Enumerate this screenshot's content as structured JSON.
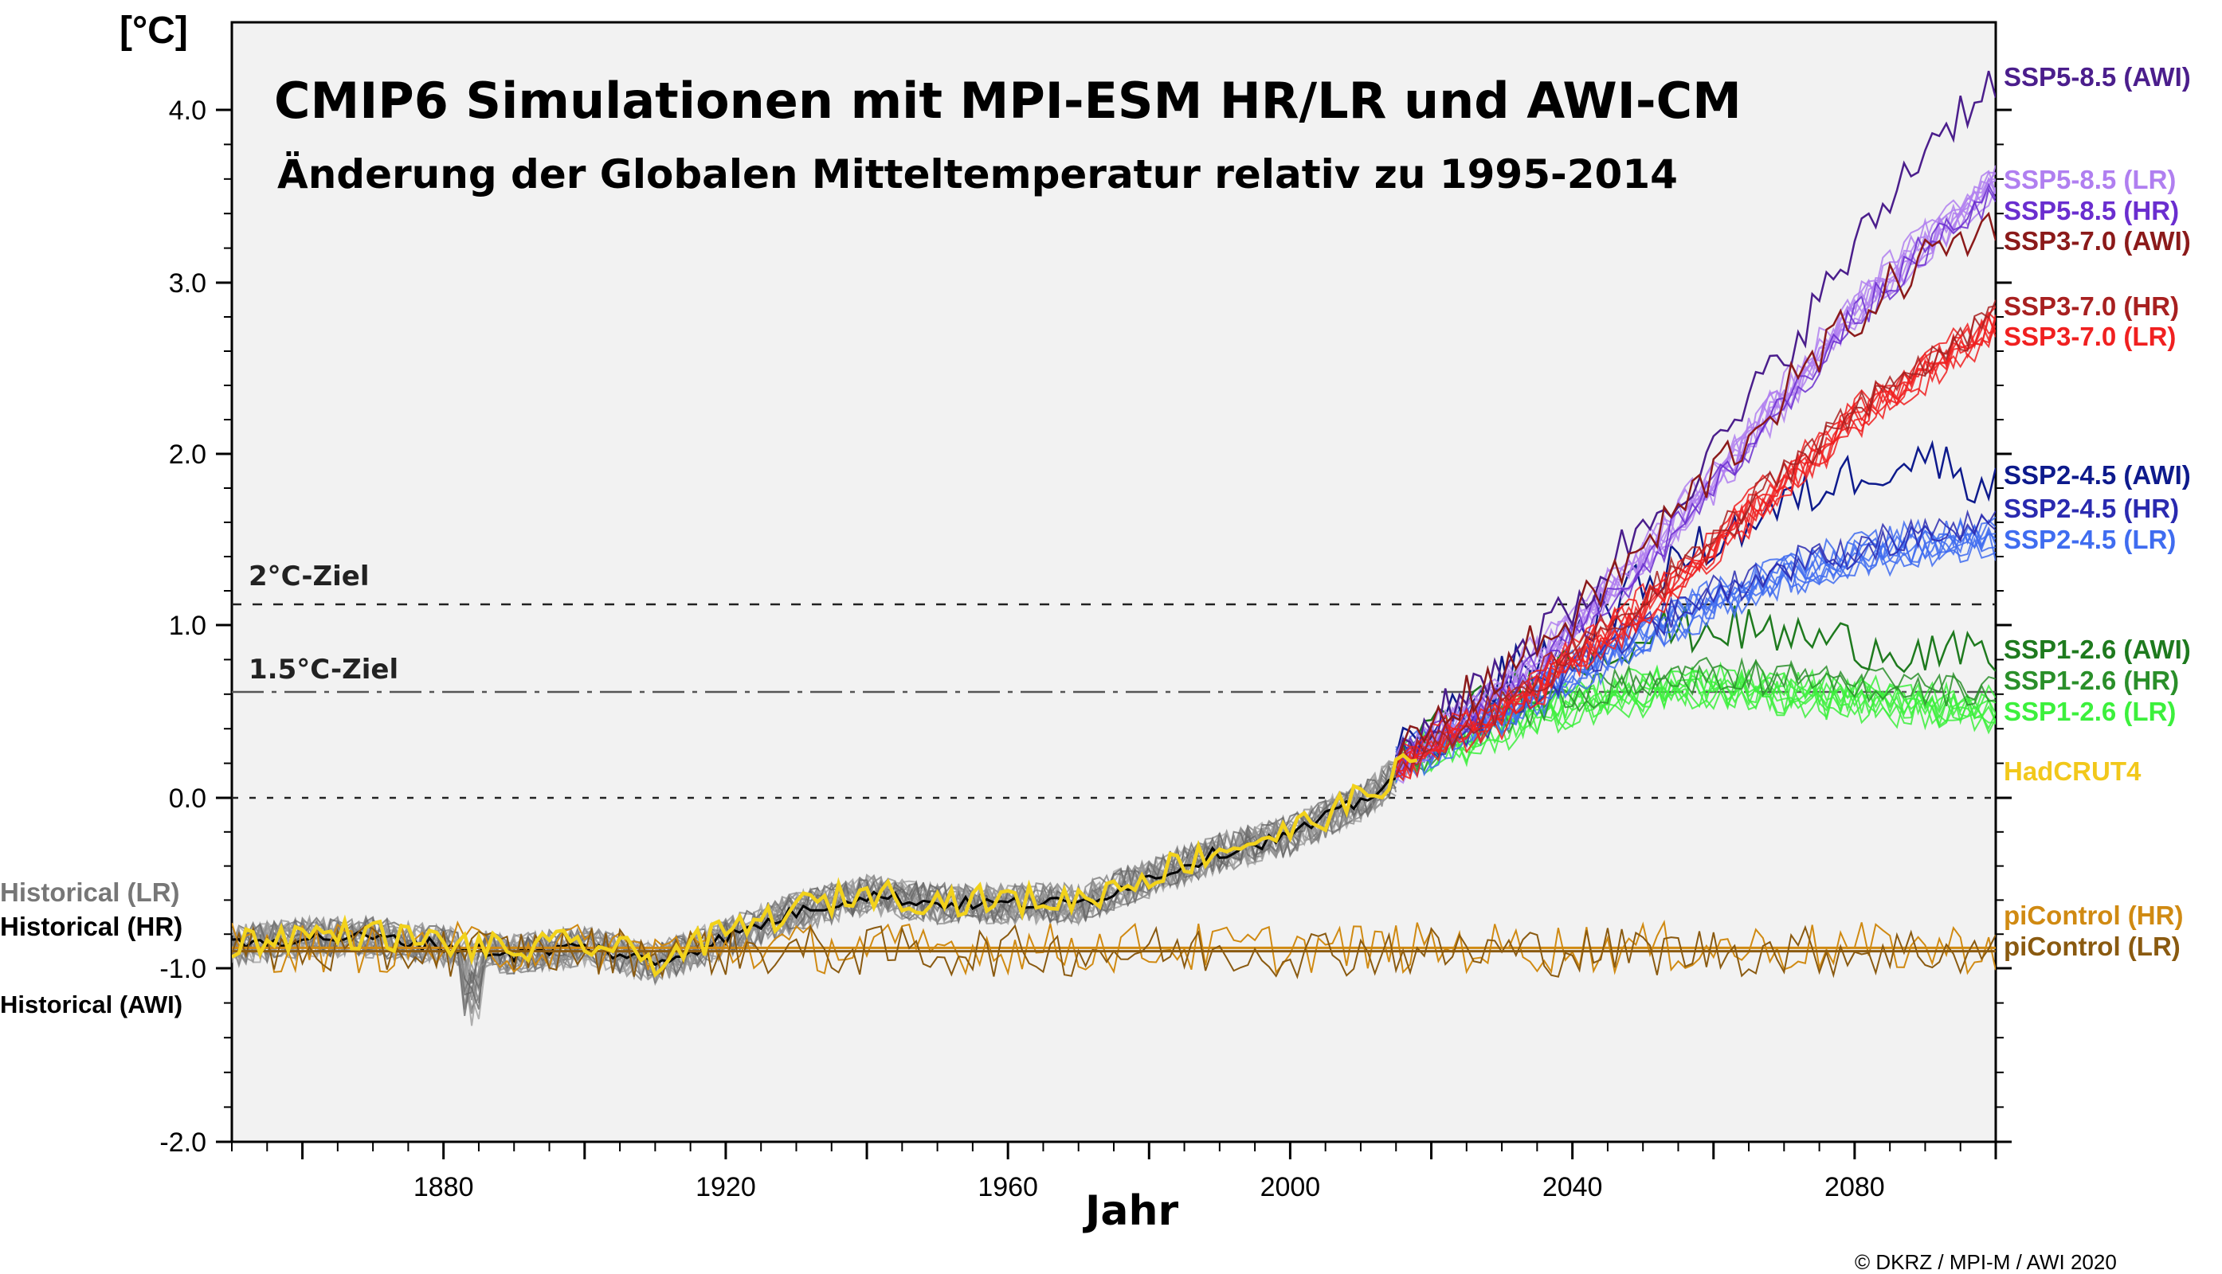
{
  "chart_data": {
    "type": "line",
    "title": "CMIP6 Simulationen mit MPI-ESM HR/LR und AWI-CM",
    "subtitle": "Änderung der Globalen Mitteltemperatur relativ zu 1995-2014",
    "xlabel": "Jahr",
    "ylabel": "[°C]",
    "xlim": [
      1850,
      2100
    ],
    "ylim": [
      -2.0,
      4.0
    ],
    "x_ticks": [
      "1880",
      "1920",
      "1960",
      "2000",
      "2040",
      "2080"
    ],
    "y_ticks": [
      "4.0",
      "3.0",
      "2.0",
      "1.0",
      "0.0",
      "-1.0",
      "-2.0"
    ],
    "grid": false,
    "legend": "right-side labels",
    "copyright": "© DKRZ / MPI-M / AWI 2020",
    "reference_lines": [
      {
        "label": "2°C-Ziel",
        "y": 1.12,
        "style": "dashed"
      },
      {
        "label": "1.5°C-Ziel",
        "y": 0.62,
        "style": "dash-dot"
      },
      {
        "label": "",
        "y": 0.0,
        "style": "dotted"
      }
    ],
    "left_labels": [
      {
        "label": "Historical (LR)",
        "color": "#777777"
      },
      {
        "label": "Historical (HR)",
        "color": "#000000"
      },
      {
        "label": "Historical (AWI)",
        "color": "#000000"
      }
    ],
    "series": [
      {
        "name": "SSP5-8.5 (AWI)",
        "color": "#4b1e8c",
        "x": [
          2015,
          2030,
          2040,
          2050,
          2060,
          2070,
          2080,
          2090,
          2100
        ],
        "y": [
          0.25,
          0.8,
          1.1,
          1.6,
          2.0,
          2.6,
          3.2,
          3.8,
          4.2
        ]
      },
      {
        "name": "SSP5-8.5 (LR)",
        "color": "#b07ff0",
        "x": [
          2015,
          2030,
          2040,
          2050,
          2060,
          2070,
          2080,
          2090,
          2100
        ],
        "y": [
          0.2,
          0.65,
          1.0,
          1.4,
          1.85,
          2.35,
          2.85,
          3.25,
          3.6
        ]
      },
      {
        "name": "SSP5-8.5 (HR)",
        "color": "#6a2ecf",
        "x": [
          2015,
          2030,
          2040,
          2050,
          2060,
          2070,
          2080,
          2090,
          2100
        ],
        "y": [
          0.2,
          0.6,
          0.95,
          1.35,
          1.8,
          2.3,
          2.8,
          3.2,
          3.5
        ]
      },
      {
        "name": "SSP3-7.0 (AWI)",
        "color": "#8b1a1a",
        "x": [
          2015,
          2030,
          2040,
          2050,
          2060,
          2070,
          2080,
          2090,
          2100
        ],
        "y": [
          0.25,
          0.75,
          1.05,
          1.45,
          1.9,
          2.35,
          2.8,
          3.15,
          3.35
        ]
      },
      {
        "name": "SSP3-7.0 (HR)",
        "color": "#a82020",
        "x": [
          2015,
          2030,
          2040,
          2050,
          2060,
          2070,
          2080,
          2090,
          2100
        ],
        "y": [
          0.2,
          0.55,
          0.85,
          1.15,
          1.5,
          1.9,
          2.25,
          2.55,
          2.8
        ]
      },
      {
        "name": "SSP3-7.0 (LR)",
        "color": "#f02020",
        "x": [
          2015,
          2030,
          2040,
          2050,
          2060,
          2070,
          2080,
          2090,
          2100
        ],
        "y": [
          0.2,
          0.5,
          0.8,
          1.1,
          1.45,
          1.85,
          2.2,
          2.5,
          2.75
        ]
      },
      {
        "name": "SSP2-4.5 (AWI)",
        "color": "#0d1a8c",
        "x": [
          2015,
          2030,
          2040,
          2050,
          2060,
          2070,
          2080,
          2090,
          2100
        ],
        "y": [
          0.25,
          0.7,
          0.95,
          1.25,
          1.5,
          1.7,
          1.9,
          2.0,
          1.8
        ]
      },
      {
        "name": "SSP2-4.5 (HR)",
        "color": "#2a2ab0",
        "x": [
          2015,
          2030,
          2040,
          2050,
          2060,
          2070,
          2080,
          2090,
          2100
        ],
        "y": [
          0.2,
          0.5,
          0.75,
          1.0,
          1.2,
          1.35,
          1.45,
          1.55,
          1.58
        ]
      },
      {
        "name": "SSP2-4.5 (LR)",
        "color": "#3f6cf0",
        "x": [
          2015,
          2030,
          2040,
          2050,
          2060,
          2070,
          2080,
          2090,
          2100
        ],
        "y": [
          0.2,
          0.5,
          0.72,
          0.95,
          1.15,
          1.3,
          1.4,
          1.48,
          1.52
        ]
      },
      {
        "name": "SSP1-2.6 (AWI)",
        "color": "#1e7a1e",
        "x": [
          2015,
          2030,
          2040,
          2050,
          2060,
          2070,
          2080,
          2090,
          2100
        ],
        "y": [
          0.25,
          0.6,
          0.8,
          0.95,
          1.0,
          0.95,
          0.9,
          0.85,
          0.8
        ]
      },
      {
        "name": "SSP1-2.6 (HR)",
        "color": "#2a8f2a",
        "x": [
          2015,
          2030,
          2040,
          2050,
          2060,
          2070,
          2080,
          2090,
          2100
        ],
        "y": [
          0.2,
          0.45,
          0.6,
          0.7,
          0.72,
          0.7,
          0.67,
          0.65,
          0.63
        ]
      },
      {
        "name": "SSP1-2.6 (LR)",
        "color": "#3cf03c",
        "x": [
          2015,
          2030,
          2040,
          2050,
          2060,
          2070,
          2080,
          2090,
          2100
        ],
        "y": [
          0.2,
          0.42,
          0.55,
          0.62,
          0.65,
          0.62,
          0.58,
          0.55,
          0.5
        ]
      },
      {
        "name": "HadCRUT4",
        "color": "#f2d21b",
        "x": [
          1850,
          1860,
          1870,
          1880,
          1890,
          1900,
          1910,
          1920,
          1930,
          1940,
          1950,
          1960,
          1970,
          1980,
          1990,
          2000,
          2010,
          2017
        ],
        "y": [
          -0.85,
          -0.8,
          -0.8,
          -0.85,
          -0.9,
          -0.85,
          -0.95,
          -0.8,
          -0.65,
          -0.55,
          -0.6,
          -0.6,
          -0.6,
          -0.45,
          -0.3,
          -0.2,
          0.0,
          0.2
        ]
      },
      {
        "name": "piControl (HR)",
        "color": "#d08a12",
        "x": [
          1850,
          2100
        ],
        "y": [
          -0.88,
          -0.88
        ]
      },
      {
        "name": "piControl (LR)",
        "color": "#8a5a10",
        "x": [
          1850,
          2100
        ],
        "y": [
          -0.9,
          -0.9
        ]
      }
    ]
  }
}
